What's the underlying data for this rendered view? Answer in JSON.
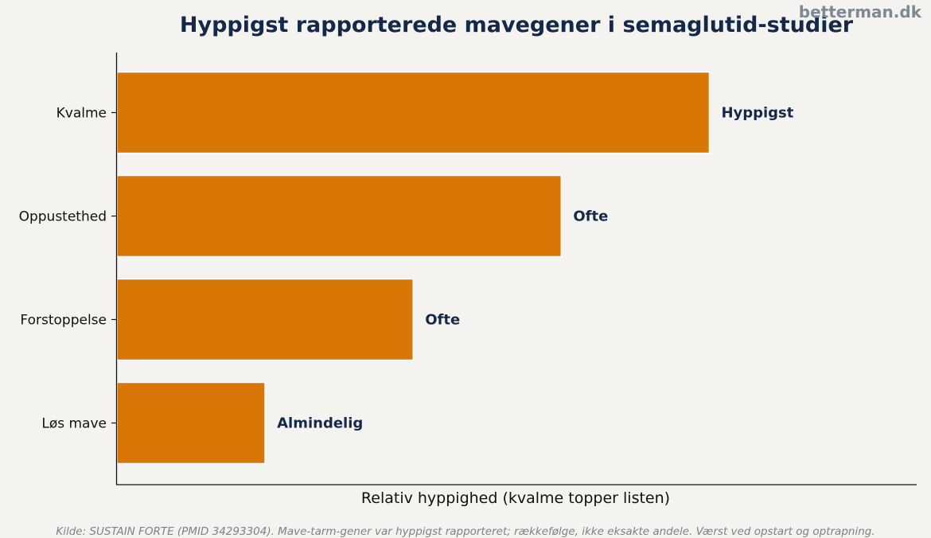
{
  "brand": "betterman.dk",
  "source_note": "Kilde: SUSTAIN FORTE (PMID 34293304). Mave-tarm-gener var hyppigst rapporteret; rækkefølge, ikke eksakte andele. Værst ved opstart og optrapning.",
  "chart_data": {
    "type": "bar",
    "orientation": "horizontal",
    "title": "Hyppigst rapporterede mavegener i semaglutid-studier",
    "xlabel": "Relativ hyppighed (kvalme topper listen)",
    "ylabel": "",
    "categories": [
      "Kvalme",
      "Oppustethed",
      "Forstoppelse",
      "Løs mave"
    ],
    "values": [
      4,
      3,
      2,
      1
    ],
    "value_labels": [
      "Hyppigst",
      "Ofte",
      "Ofte",
      "Almindelig"
    ],
    "xlim": [
      0,
      5.4
    ],
    "x_ticks_shown": false,
    "grid": false,
    "legend": "none",
    "bar_color": "#d97706",
    "text_color": "#14294a",
    "background": "#f5f3f0"
  }
}
